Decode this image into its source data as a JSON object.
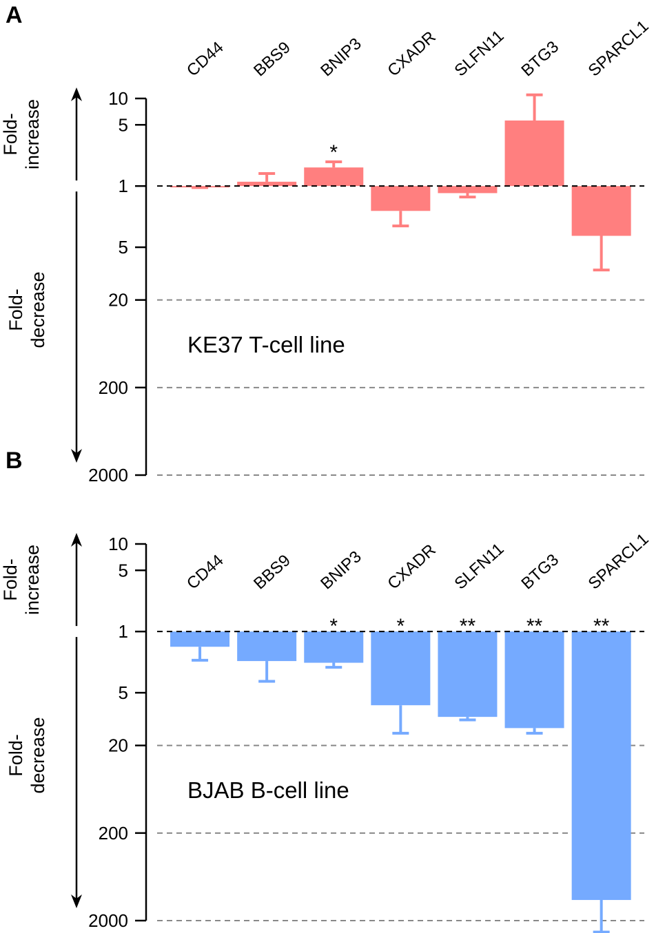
{
  "chart_data": [
    {
      "type": "bar",
      "panel_label": "A",
      "title": "KE37 T-cell line",
      "axis_labels": {
        "increase": [
          "Fold-",
          "increase"
        ],
        "decrease": [
          "Fold-",
          "decrease"
        ]
      },
      "categories": [
        "CD44",
        "BBS9",
        "BNIP3",
        "CXADR",
        "SLFN11",
        "BTG3",
        "SPARCL1"
      ],
      "values": [
        0.98,
        1.12,
        1.63,
        0.52,
        0.83,
        5.6,
        0.27
      ],
      "error_ends": [
        0.96,
        1.39,
        1.89,
        0.35,
        0.75,
        11,
        0.11
      ],
      "significance": [
        null,
        null,
        "*",
        null,
        null,
        null,
        null
      ],
      "color": "#ff7f7f",
      "log_scale": true,
      "baseline": 1,
      "ylim": [
        0.0005,
        10
      ],
      "yticks": [
        10,
        5,
        1,
        {
          "value": 0.2,
          "label": "5"
        },
        {
          "value": 0.05,
          "label": "20",
          "grid": true
        },
        {
          "value": 0.005,
          "label": "200",
          "grid": true
        },
        {
          "value": 0.0005,
          "label": "2000",
          "grid": true
        }
      ]
    },
    {
      "type": "bar",
      "panel_label": "B",
      "title": "BJAB B-cell line",
      "axis_labels": {
        "increase": [
          "Fold-",
          "increase"
        ],
        "decrease": [
          "Fold-",
          "decrease"
        ]
      },
      "categories": [
        "CD44",
        "BBS9",
        "BNIP3",
        "CXADR",
        "SLFN11",
        "BTG3",
        "SPARCL1"
      ],
      "values": [
        0.67,
        0.46,
        0.44,
        0.144,
        0.106,
        0.079,
        0.00086
      ],
      "error_ends": [
        0.47,
        0.27,
        0.39,
        0.069,
        0.098,
        0.069,
        0.00037
      ],
      "significance": [
        null,
        null,
        "*",
        "*",
        "**",
        "**",
        "**"
      ],
      "color": "#75aaff",
      "log_scale": true,
      "baseline": 1,
      "ylim": [
        0.0005,
        10
      ],
      "yticks": [
        10,
        5,
        1,
        {
          "value": 0.2,
          "label": "5"
        },
        {
          "value": 0.05,
          "label": "20",
          "grid": true
        },
        {
          "value": 0.005,
          "label": "200",
          "grid": true
        },
        {
          "value": 0.0005,
          "label": "2000",
          "grid": true
        }
      ]
    }
  ]
}
